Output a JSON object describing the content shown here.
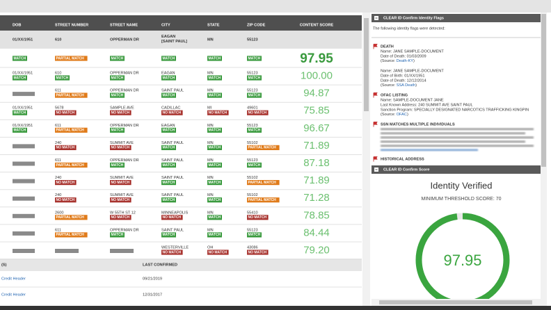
{
  "table": {
    "headers": [
      "DOB",
      "STREET NUMBER",
      "STREET NAME",
      "CITY",
      "STATE",
      "ZIP CODE",
      "CONTENT SCORE"
    ],
    "input": [
      "01/XX/1951",
      "610",
      "OPPERMAN DR",
      "EAGAN [SAINT PAUL]",
      "MN",
      "55123"
    ],
    "input_badges": [
      "MATCH",
      "PARTIAL MATCH",
      "MATCH",
      "MATCH",
      "MATCH",
      "MATCH"
    ],
    "input_score": "97.95",
    "rows": [
      {
        "cells": [
          {
            "text": "01/XX/1951",
            "badge": "MATCH"
          },
          {
            "text": "610",
            "badge": "MATCH"
          },
          {
            "text": "OPPERMAN DR",
            "badge": "MATCH"
          },
          {
            "text": "EAGAN",
            "badge": "MATCH"
          },
          {
            "text": "MN",
            "badge": "MATCH"
          },
          {
            "text": "55123",
            "badge": "MATCH"
          }
        ],
        "score": "100.00"
      },
      {
        "cells": [
          null,
          {
            "text": "611",
            "badge": "PARTIAL MATCH"
          },
          {
            "text": "OPPERMAN DR",
            "badge": "MATCH"
          },
          {
            "text": "SAINT PAUL",
            "badge": "MATCH"
          },
          {
            "text": "MN",
            "badge": "MATCH"
          },
          {
            "text": "55123",
            "badge": "MATCH"
          }
        ],
        "score": "94.87"
      },
      {
        "cells": [
          {
            "text": "01/XX/1951",
            "badge": "MATCH"
          },
          {
            "text": "5678",
            "badge": "NO MATCH"
          },
          {
            "text": "SAMPLE AVE",
            "badge": "NO MATCH"
          },
          {
            "text": "CADILLAC",
            "badge": "NO MATCH"
          },
          {
            "text": "MI",
            "badge": "NO MATCH"
          },
          {
            "text": "49601",
            "badge": "NO MATCH"
          }
        ],
        "score": "75.85"
      },
      {
        "cells": [
          {
            "text": "01/XX/1951",
            "badge": "MATCH"
          },
          {
            "text": "611",
            "badge": "PARTIAL MATCH"
          },
          {
            "text": "OPPERMAN DR",
            "badge": "MATCH"
          },
          {
            "text": "EAGAN",
            "badge": "MATCH"
          },
          {
            "text": "MN",
            "badge": "MATCH"
          },
          {
            "text": "55123",
            "badge": "MATCH"
          }
        ],
        "score": "96.67"
      },
      {
        "cells": [
          null,
          {
            "text": "240",
            "badge": "NO MATCH"
          },
          {
            "text": "SUMMIT AVE",
            "badge": "NO MATCH"
          },
          {
            "text": "SAINT PAUL",
            "badge": "MATCH"
          },
          {
            "text": "MN",
            "badge": "MATCH"
          },
          {
            "text": "55102",
            "badge": "PARTIAL MATCH"
          }
        ],
        "score": "71.89"
      },
      {
        "cells": [
          null,
          {
            "text": "611",
            "badge": "PARTIAL MATCH"
          },
          {
            "text": "OPPERMAN DR",
            "badge": "MATCH"
          },
          {
            "text": "SAINT PAUL",
            "badge": "MATCH"
          },
          {
            "text": "MN",
            "badge": "MATCH"
          },
          {
            "text": "55123",
            "badge": "MATCH"
          }
        ],
        "score": "87.18"
      },
      {
        "cells": [
          null,
          {
            "text": "240",
            "badge": "NO MATCH"
          },
          {
            "text": "SUMMIT AVE",
            "badge": "NO MATCH"
          },
          {
            "text": "SAINT PAUL",
            "badge": "MATCH"
          },
          {
            "text": "MN",
            "badge": "MATCH"
          },
          {
            "text": "55102",
            "badge": "PARTIAL MATCH"
          }
        ],
        "score": "71.89"
      },
      {
        "cells": [
          null,
          {
            "text": "240",
            "badge": "NO MATCH"
          },
          {
            "text": "SUMMIT AVE",
            "badge": "NO MATCH"
          },
          {
            "text": "SAINT PAUL",
            "badge": "MATCH"
          },
          {
            "text": "MN",
            "badge": "MATCH"
          },
          {
            "text": "55102",
            "badge": "PARTIAL MATCH"
          }
        ],
        "score": "71.28"
      },
      {
        "cells": [
          null,
          {
            "text": "2600",
            "badge": "PARTIAL MATCH"
          },
          {
            "text": "W 55TH ST 12",
            "badge": "NO MATCH"
          },
          {
            "text": "MINNEAPOLIS",
            "badge": "NO MATCH"
          },
          {
            "text": "MN",
            "badge": "MATCH"
          },
          {
            "text": "55410",
            "badge": "NO MATCH"
          }
        ],
        "score": "78.85"
      },
      {
        "cells": [
          null,
          {
            "text": "611",
            "badge": "PARTIAL MATCH"
          },
          {
            "text": "OPPERMAN DR",
            "badge": "MATCH"
          },
          {
            "text": "SAINT PAUL",
            "badge": "MATCH"
          },
          {
            "text": "MN",
            "badge": "MATCH"
          },
          {
            "text": "55123",
            "badge": "MATCH"
          }
        ],
        "score": "84.44"
      },
      {
        "cells": [
          null,
          null,
          null,
          {
            "text": "WESTERVILLE",
            "badge": "NO MATCH"
          },
          {
            "text": "OH",
            "badge": "NO MATCH"
          },
          {
            "text": "43086",
            "badge": "NO MATCH"
          }
        ],
        "score": "79.20"
      }
    ]
  },
  "sources": {
    "headers": [
      "(S)",
      "LAST CONFIRMED"
    ],
    "rows": [
      [
        "Credit Header",
        "09/21/2019"
      ],
      [
        "Credit Header",
        "12/31/2017"
      ]
    ]
  },
  "flags_panel": {
    "title": "CLEAR ID Confirm Identity Flags",
    "intro": "The following identity flags were detected:",
    "flags": [
      {
        "title": "DEATH",
        "entries": [
          {
            "lines": [
              "Name: JANE SAMPLE-DOCUMENT",
              "Date of Death: 01/03/2009"
            ],
            "source": [
              "(Source: ",
              "Death-KY",
              ")"
            ]
          },
          {
            "lines": [
              "Name: JANE SAMPLE-DOCUMENT",
              "Date of Birth: 01/XX/1951",
              "Date of Death: 12/12/2014"
            ],
            "source": [
              "(Source: ",
              "SSA Death",
              ")"
            ]
          }
        ]
      },
      {
        "title": "OFAC LISTING",
        "entries": [
          {
            "lines": [
              "Name: SAMPLE-DOCUMENT JANE",
              "Last Known Address: 240 SUMMIT AVE SAINT PAUL",
              "Sanction Program: SPECIALLY DESIGNATED NARCOTICS TRAFFICKING KINGPIN"
            ],
            "source": [
              "(Source: ",
              "OFAC",
              ")"
            ]
          }
        ]
      },
      {
        "title": "SSN MATCHES MULTIPLE INDIVIDUALS",
        "entries": []
      },
      {
        "title": "HISTORICAL ADDRESS",
        "entries": []
      }
    ]
  },
  "score_panel": {
    "title": "CLEAR ID Confirm Score",
    "status": "Identity Verified",
    "threshold": "MINIMUM THRESHOLD SCORE: 70",
    "score": 97.95
  }
}
